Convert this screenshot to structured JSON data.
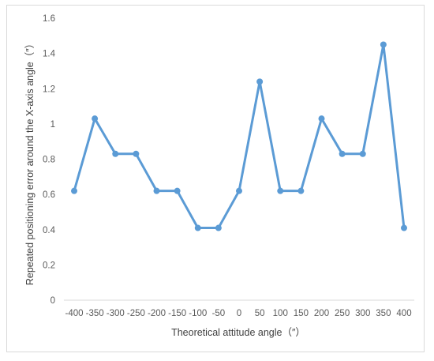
{
  "chart_data": {
    "type": "line",
    "title": "",
    "xlabel": "Theoretical attitude angle（″）",
    "ylabel": "Repeated positioning error around the X-axis angle（″）",
    "categories": [
      "-400",
      "-350",
      "-300",
      "-250",
      "-200",
      "-150",
      "-100",
      "-50",
      "0",
      "50",
      "100",
      "150",
      "200",
      "250",
      "300",
      "350",
      "400"
    ],
    "series": [
      {
        "values": [
          0.62,
          1.03,
          0.83,
          0.83,
          0.62,
          0.62,
          0.41,
          0.41,
          0.62,
          1.24,
          0.62,
          0.62,
          1.03,
          0.83,
          0.83,
          1.45,
          0.41
        ],
        "color": "#5b9bd5"
      }
    ],
    "ylim": [
      0,
      1.6
    ],
    "yticks": [
      "0",
      "0.2",
      "0.4",
      "0.6",
      "0.8",
      "1",
      "1.2",
      "1.4",
      "1.6"
    ],
    "grid": false,
    "legend": "none"
  }
}
